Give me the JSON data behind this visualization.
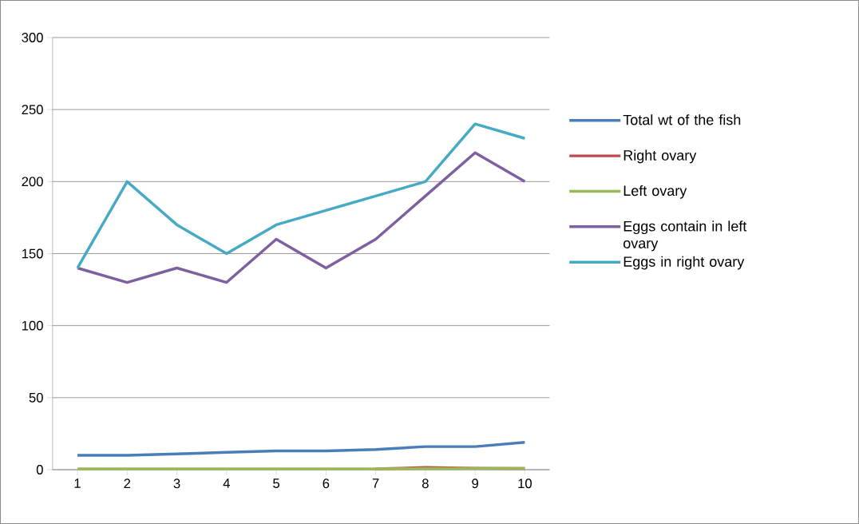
{
  "chart_data": {
    "type": "line",
    "categories": [
      "1",
      "2",
      "3",
      "4",
      "5",
      "6",
      "7",
      "8",
      "9",
      "10"
    ],
    "series": [
      {
        "name": "Total wt of the fish",
        "color": "#4a7ebb",
        "values": [
          10,
          10,
          11,
          12,
          13,
          13,
          14,
          16,
          16,
          19
        ]
      },
      {
        "name": "Right ovary",
        "color": "#be4b48",
        "values": [
          null,
          null,
          null,
          null,
          null,
          null,
          0.5,
          1.5,
          1,
          0.8
        ]
      },
      {
        "name": "Left ovary",
        "color": "#98b954",
        "values": [
          0.5,
          0.5,
          0.5,
          0.5,
          0.5,
          0.5,
          0.6,
          0.7,
          0.8,
          0.8
        ]
      },
      {
        "name": "Eggs contain in left ovary",
        "color": "#7d60a0",
        "values": [
          140,
          130,
          140,
          130,
          160,
          140,
          160,
          190,
          220,
          200
        ]
      },
      {
        "name": "Eggs in right ovary",
        "color": "#46aac5",
        "values": [
          140,
          200,
          170,
          150,
          170,
          180,
          190,
          200,
          240,
          230
        ]
      }
    ],
    "ylim": [
      0,
      300
    ],
    "yticks": [
      0,
      50,
      100,
      150,
      200,
      250,
      300
    ],
    "grid": "y",
    "legend": "right"
  }
}
